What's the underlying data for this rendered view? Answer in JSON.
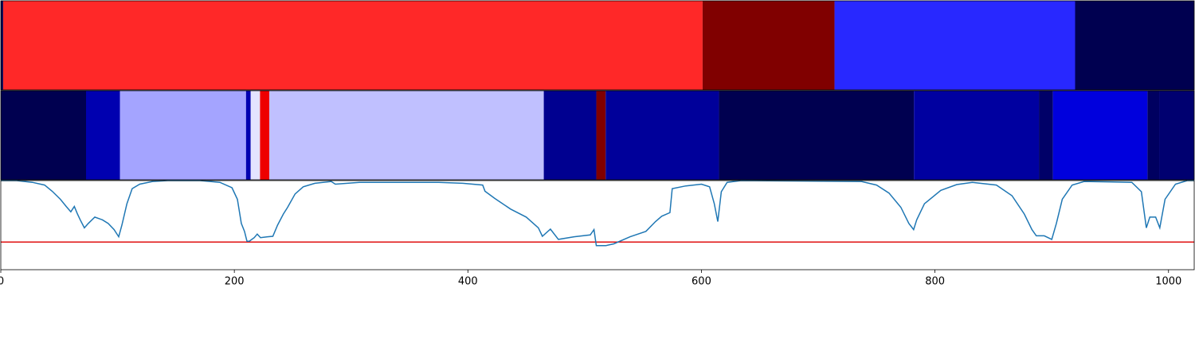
{
  "chart_data": [
    {
      "type": "segments",
      "xlim": [
        0,
        1022
      ],
      "segments": [
        {
          "start": 0,
          "end": 2,
          "color": "#000050"
        },
        {
          "start": 2,
          "end": 601,
          "color": "#ff2828"
        },
        {
          "start": 601,
          "end": 714,
          "color": "#800000"
        },
        {
          "start": 714,
          "end": 920,
          "color": "#2828ff"
        },
        {
          "start": 920,
          "end": 1022,
          "color": "#000050"
        }
      ]
    },
    {
      "type": "segments",
      "xlim": [
        0,
        1022
      ],
      "segments": [
        {
          "start": 0,
          "end": 73,
          "color": "#000050"
        },
        {
          "start": 73,
          "end": 102,
          "color": "#0000b0"
        },
        {
          "start": 102,
          "end": 210,
          "color": "#a4a4ff"
        },
        {
          "start": 210,
          "end": 214,
          "color": "#0000b0"
        },
        {
          "start": 214,
          "end": 222,
          "color": "#e4e4ff"
        },
        {
          "start": 222,
          "end": 230,
          "color": "#ee0000"
        },
        {
          "start": 230,
          "end": 465,
          "color": "#c0c0ff"
        },
        {
          "start": 465,
          "end": 510,
          "color": "#000090"
        },
        {
          "start": 510,
          "end": 518,
          "color": "#800000"
        },
        {
          "start": 518,
          "end": 615,
          "color": "#00009a"
        },
        {
          "start": 615,
          "end": 782,
          "color": "#000050"
        },
        {
          "start": 782,
          "end": 889,
          "color": "#0000a0"
        },
        {
          "start": 889,
          "end": 901,
          "color": "#000068"
        },
        {
          "start": 901,
          "end": 982,
          "color": "#0000dd"
        },
        {
          "start": 982,
          "end": 992,
          "color": "#000060"
        },
        {
          "start": 992,
          "end": 1022,
          "color": "#000070"
        }
      ]
    },
    {
      "type": "line",
      "xlim": [
        0,
        1022
      ],
      "ylim": [
        0,
        1
      ],
      "xticks": [
        0,
        200,
        400,
        600,
        800,
        1000
      ],
      "color": "#1f77b4",
      "hline": {
        "value": 0.31,
        "color": "#e01010"
      },
      "x": [
        0,
        13.6,
        27,
        37.5,
        44,
        51,
        56,
        60,
        63,
        65.5,
        68,
        71.6,
        75,
        80.5,
        87,
        92,
        97,
        101,
        103.7,
        108,
        112.5,
        119,
        130,
        143,
        170.5,
        187.6,
        198,
        202.6,
        206,
        208.7,
        210.8,
        212.8,
        217,
        219.6,
        222.4,
        228.5,
        233,
        237,
        242,
        245.6,
        252,
        259,
        269,
        283,
        286.5,
        307,
        341,
        375,
        395.6,
        412.7,
        414.7,
        423,
        436.6,
        450,
        460.4,
        463.8,
        470.7,
        477.5,
        491,
        504.8,
        508,
        510,
        518,
        525,
        539,
        552.5,
        560.7,
        566,
        573,
        575,
        586.6,
        600,
        607,
        611,
        614,
        617,
        622,
        634,
        737,
        750,
        760.6,
        770.8,
        777.6,
        781.7,
        784.4,
        791,
        805,
        818.6,
        832,
        852.6,
        866,
        876.5,
        883,
        886.8,
        893.6,
        900,
        904,
        909,
        917.5,
        927.7,
        968.6,
        976.8,
        981,
        984,
        989,
        992.5,
        997,
        1006,
        1016,
        1022
      ],
      "values": [
        1.0,
        1.0,
        0.98,
        0.95,
        0.88,
        0.79,
        0.71,
        0.65,
        0.71,
        0.63,
        0.56,
        0.47,
        0.52,
        0.59,
        0.56,
        0.52,
        0.45,
        0.37,
        0.5,
        0.74,
        0.91,
        0.96,
        0.99,
        1.0,
        1.0,
        0.98,
        0.92,
        0.79,
        0.52,
        0.43,
        0.32,
        0.32,
        0.36,
        0.4,
        0.36,
        0.37,
        0.375,
        0.5,
        0.625,
        0.7,
        0.85,
        0.93,
        0.97,
        0.99,
        0.96,
        0.98,
        0.98,
        0.98,
        0.97,
        0.95,
        0.88,
        0.8,
        0.68,
        0.59,
        0.47,
        0.375,
        0.455,
        0.34,
        0.37,
        0.39,
        0.45,
        0.27,
        0.27,
        0.29,
        0.37,
        0.43,
        0.54,
        0.6,
        0.64,
        0.91,
        0.94,
        0.96,
        0.93,
        0.74,
        0.54,
        0.875,
        0.98,
        1.0,
        0.99,
        0.95,
        0.86,
        0.7,
        0.52,
        0.45,
        0.56,
        0.74,
        0.89,
        0.955,
        0.98,
        0.95,
        0.83,
        0.625,
        0.45,
        0.38,
        0.38,
        0.34,
        0.52,
        0.79,
        0.95,
        0.99,
        0.98,
        0.875,
        0.47,
        0.59,
        0.59,
        0.47,
        0.79,
        0.96,
        1.0,
        1.0
      ]
    }
  ]
}
